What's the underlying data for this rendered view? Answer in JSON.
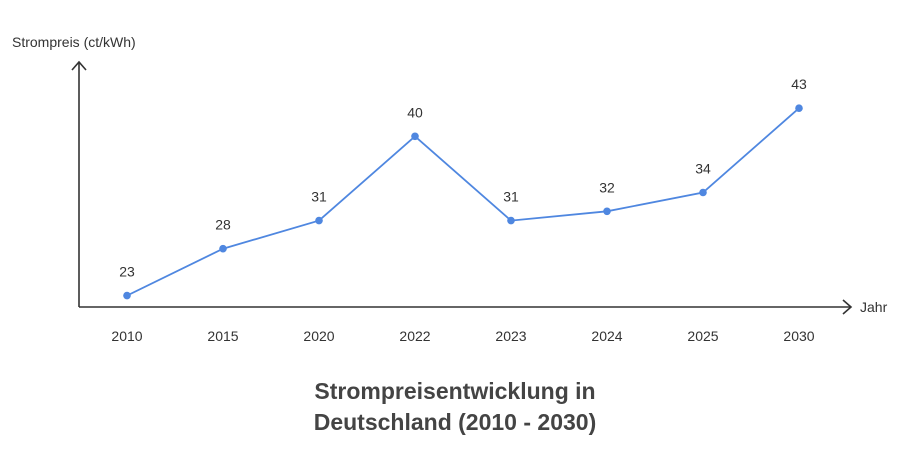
{
  "chart_data": {
    "type": "line",
    "title_lines": [
      "Strompreisentwicklung in",
      "Deutschland (2010 - 2030)"
    ],
    "xlabel": "Jahr",
    "ylabel": "Strompreis (ct/kWh)",
    "categories": [
      "2010",
      "2015",
      "2020",
      "2022",
      "2023",
      "2024",
      "2025",
      "2030"
    ],
    "values": [
      23,
      28,
      31,
      40,
      31,
      32,
      34,
      43
    ],
    "ylim": [
      15,
      45
    ],
    "grid": false,
    "legend": "none",
    "line_color": "#4f87e0",
    "point_color": "#4f87e0",
    "axis_color": "#333333"
  }
}
